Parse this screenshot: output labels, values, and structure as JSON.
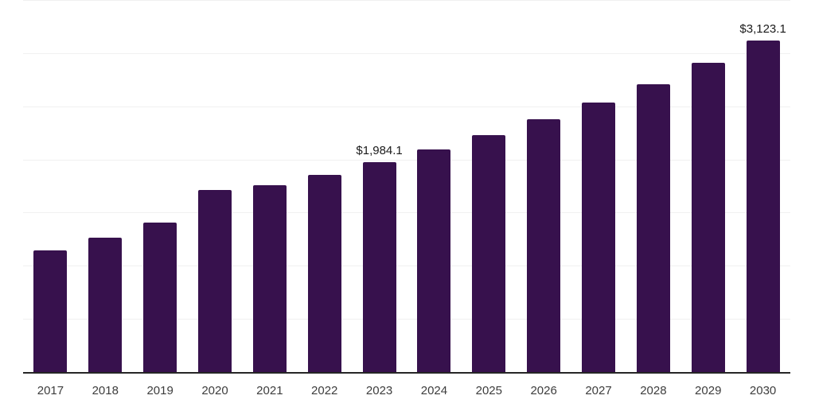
{
  "chart_data": {
    "type": "bar",
    "title": "",
    "xlabel": "",
    "ylabel": "",
    "categories": [
      "2017",
      "2018",
      "2019",
      "2020",
      "2021",
      "2022",
      "2023",
      "2024",
      "2025",
      "2026",
      "2027",
      "2028",
      "2029",
      "2030"
    ],
    "values": [
      1150,
      1275,
      1415,
      1720,
      1765,
      1865,
      1984.1,
      2105,
      2240,
      2385,
      2540,
      2715,
      2915,
      3123.1
    ],
    "value_labels": {
      "2023": "$1,984.1",
      "2030": "$3,123.1"
    },
    "ylim": [
      0,
      3500
    ],
    "gridline_step": 500,
    "grid": "horizontal-only",
    "legend": "none",
    "y_axis_tick_labels": "none"
  },
  "style": {
    "bar_color": "#37114d",
    "gridline_color": "#f0f0f0",
    "axis_line_color": "#262626",
    "x_label_color": "#3d3d3d",
    "value_label_color": "#1a1a1a",
    "background_color": "#ffffff"
  }
}
